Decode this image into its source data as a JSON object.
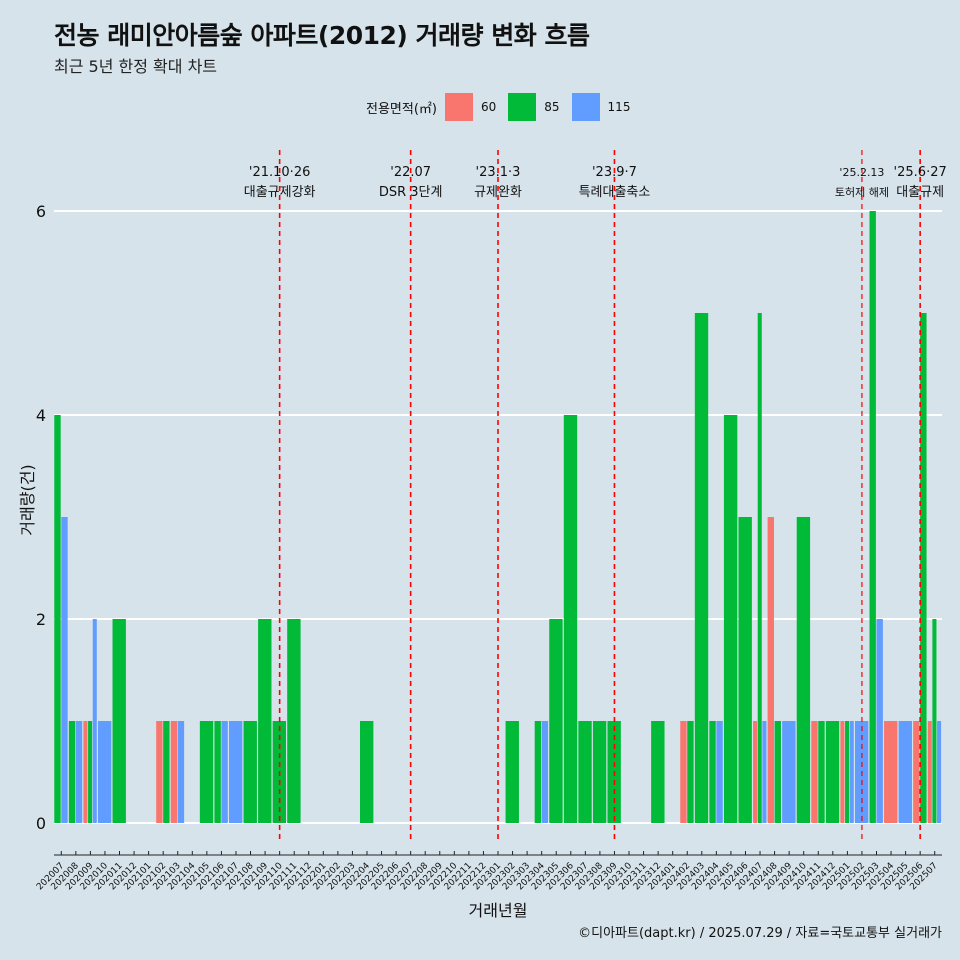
{
  "title": "전농 래미안아름숲 아파트(2012) 거래량 변화 흐름",
  "subtitle": "최근 5년 한정 확대 차트",
  "legend": {
    "title": "전용면적(㎡)",
    "items": [
      {
        "label": "60",
        "color": "#f8766d"
      },
      {
        "label": "85",
        "color": "#00ba38"
      },
      {
        "label": "115",
        "color": "#619cff"
      }
    ]
  },
  "caption": "©디아파트(dapt.kr) / 2025.07.29 / 자료=국토교통부 실거래가",
  "chart_data": {
    "type": "bar",
    "xlabel": "거래년월",
    "ylabel": "거래량(건)",
    "ylim": [
      0,
      6.5
    ],
    "yticks": [
      0,
      2,
      4,
      6
    ],
    "grid": true,
    "legend_position": "top",
    "categories": [
      "202007",
      "202008",
      "202009",
      "202010",
      "202011",
      "202012",
      "202101",
      "202102",
      "202103",
      "202104",
      "202105",
      "202106",
      "202107",
      "202108",
      "202109",
      "202110",
      "202111",
      "202112",
      "202201",
      "202202",
      "202203",
      "202204",
      "202205",
      "202206",
      "202207",
      "202208",
      "202209",
      "202210",
      "202211",
      "202212",
      "202301",
      "202302",
      "202303",
      "202304",
      "202305",
      "202306",
      "202307",
      "202308",
      "202309",
      "202310",
      "202311",
      "202312",
      "202401",
      "202402",
      "202403",
      "202404",
      "202405",
      "202406",
      "202407",
      "202408",
      "202409",
      "202410",
      "202411",
      "202412",
      "202501",
      "202502",
      "202503",
      "202504",
      "202505",
      "202506",
      "202507"
    ],
    "series": [
      {
        "name": "60",
        "color": "#f8766d",
        "values": [
          0,
          0,
          1,
          0,
          0,
          0,
          0,
          1,
          1,
          0,
          0,
          0,
          0,
          0,
          0,
          0,
          0,
          0,
          0,
          0,
          0,
          0,
          0,
          0,
          0,
          0,
          0,
          0,
          0,
          0,
          0,
          0,
          0,
          0,
          0,
          0,
          0,
          0,
          0,
          0,
          0,
          0,
          0,
          1,
          0,
          0,
          0,
          0,
          1,
          3,
          0,
          0,
          1,
          0,
          1,
          0,
          0,
          1,
          0,
          1,
          1
        ]
      },
      {
        "name": "85",
        "color": "#00ba38",
        "values": [
          4,
          1,
          1,
          0,
          2,
          0,
          0,
          1,
          0,
          0,
          1,
          1,
          0,
          1,
          2,
          1,
          2,
          0,
          0,
          0,
          0,
          1,
          0,
          0,
          0,
          0,
          0,
          0,
          0,
          0,
          0,
          1,
          0,
          1,
          2,
          4,
          1,
          1,
          1,
          0,
          0,
          1,
          0,
          1,
          5,
          1,
          4,
          3,
          5,
          1,
          0,
          3,
          1,
          1,
          1,
          0,
          6,
          0,
          0,
          5,
          2
        ]
      },
      {
        "name": "115",
        "color": "#619cff",
        "values": [
          3,
          1,
          2,
          1,
          0,
          0,
          0,
          0,
          1,
          0,
          0,
          1,
          1,
          0,
          0,
          0,
          0,
          0,
          0,
          0,
          0,
          0,
          0,
          0,
          0,
          0,
          0,
          0,
          0,
          0,
          0,
          0,
          0,
          1,
          0,
          0,
          0,
          0,
          0,
          0,
          0,
          0,
          0,
          0,
          0,
          1,
          0,
          0,
          1,
          0,
          1,
          0,
          0,
          0,
          1,
          1,
          2,
          0,
          1,
          0,
          1
        ]
      }
    ],
    "events": [
      {
        "index": 15.5,
        "date": "'21.10·26",
        "label": "대출규제강화"
      },
      {
        "index": 24.5,
        "date": "'22.07",
        "label": "DSR 3단계"
      },
      {
        "index": 30.5,
        "date": "'23.1·3",
        "label": "규제완화"
      },
      {
        "index": 38.5,
        "date": "'23.9·7",
        "label": "특례대출축소"
      },
      {
        "index": 55.5,
        "date": "'25.2.13",
        "label": "토허제 해제",
        "small": true
      },
      {
        "index": 59.5,
        "date": "'25.6·27",
        "label": "대출규제"
      }
    ]
  }
}
